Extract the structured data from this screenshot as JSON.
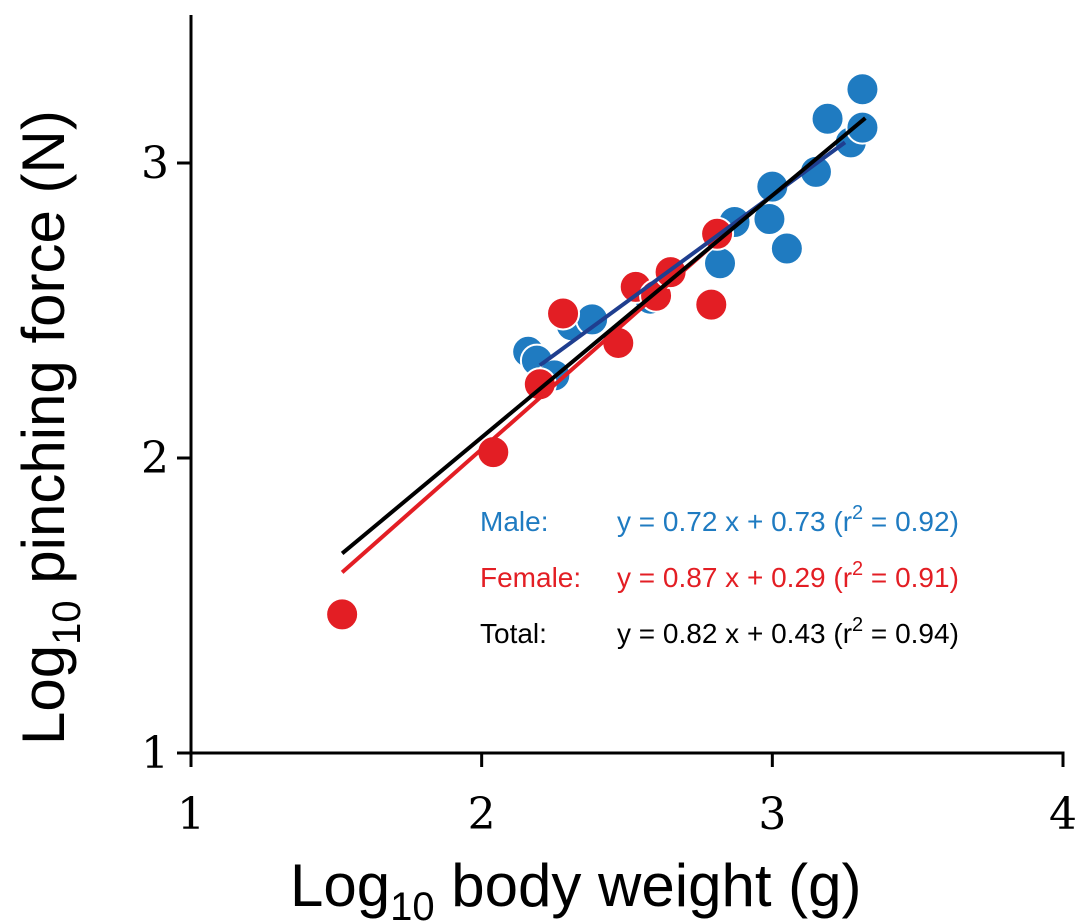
{
  "chart_data": {
    "type": "scatter",
    "title": "",
    "xlabel": {
      "base": "Log",
      "sub": "10",
      "rest": " body weight (g)"
    },
    "ylabel": {
      "base": "Log",
      "sub": "10",
      "rest": "  pinching force (N)"
    },
    "xlim": [
      1,
      4
    ],
    "ylim": [
      1,
      3.5
    ],
    "xticks": [
      1,
      2,
      3,
      4
    ],
    "xtick_labels": [
      "1",
      "2",
      "3",
      "4"
    ],
    "yticks": [
      1,
      2,
      3
    ],
    "ytick_labels": [
      "1",
      "2",
      "3"
    ],
    "grid": false,
    "colors": {
      "male": "#1f7bc1",
      "female": "#e31e24",
      "male_line": "#1f3e8f",
      "female_line": "#e31e24",
      "total_line": "#000000"
    },
    "series": [
      {
        "name": "Male",
        "color": "#1f7bc1",
        "points": [
          [
            2.16,
            2.36
          ],
          [
            2.19,
            2.33
          ],
          [
            2.25,
            2.28
          ],
          [
            2.31,
            2.45
          ],
          [
            2.38,
            2.47
          ],
          [
            2.58,
            2.54
          ],
          [
            2.82,
            2.66
          ],
          [
            2.87,
            2.8
          ],
          [
            2.99,
            2.81
          ],
          [
            3.0,
            2.92
          ],
          [
            3.05,
            2.71
          ],
          [
            3.15,
            2.97
          ],
          [
            3.19,
            3.15
          ],
          [
            3.27,
            3.07
          ],
          [
            3.31,
            3.12
          ],
          [
            3.31,
            3.25
          ]
        ]
      },
      {
        "name": "Female",
        "color": "#e31e24",
        "points": [
          [
            1.52,
            1.47
          ],
          [
            2.04,
            2.02
          ],
          [
            2.2,
            2.25
          ],
          [
            2.28,
            2.49
          ],
          [
            2.47,
            2.39
          ],
          [
            2.53,
            2.58
          ],
          [
            2.6,
            2.55
          ],
          [
            2.65,
            2.63
          ],
          [
            2.79,
            2.52
          ],
          [
            2.81,
            2.76
          ]
        ]
      }
    ],
    "fits": [
      {
        "name": "Male",
        "color": "#1f3e8f",
        "slope": 0.72,
        "intercept": 0.73,
        "x_range": [
          2.2,
          3.25
        ]
      },
      {
        "name": "Female",
        "color": "#e31e24",
        "slope": 0.87,
        "intercept": 0.29,
        "x_range": [
          1.52,
          2.82
        ]
      },
      {
        "name": "Total",
        "color": "#000000",
        "slope": 0.82,
        "intercept": 0.43,
        "x_range": [
          1.52,
          3.32
        ]
      }
    ],
    "legend": [
      {
        "label": "Male:",
        "eq": "y = 0.72 x + 0.73 (r",
        "sup": "2",
        "tail": " = 0.92)",
        "color": "#1f7bc1"
      },
      {
        "label": "Female:",
        "eq": "y = 0.87 x + 0.29 (r",
        "sup": "2",
        "tail": " = 0.91)",
        "color": "#e31e24"
      },
      {
        "label": "Total:",
        "eq": "y = 0.82 x + 0.43 (r",
        "sup": "2",
        "tail": " = 0.94)",
        "color": "#000000"
      }
    ],
    "legend_position": "bottom-right"
  }
}
